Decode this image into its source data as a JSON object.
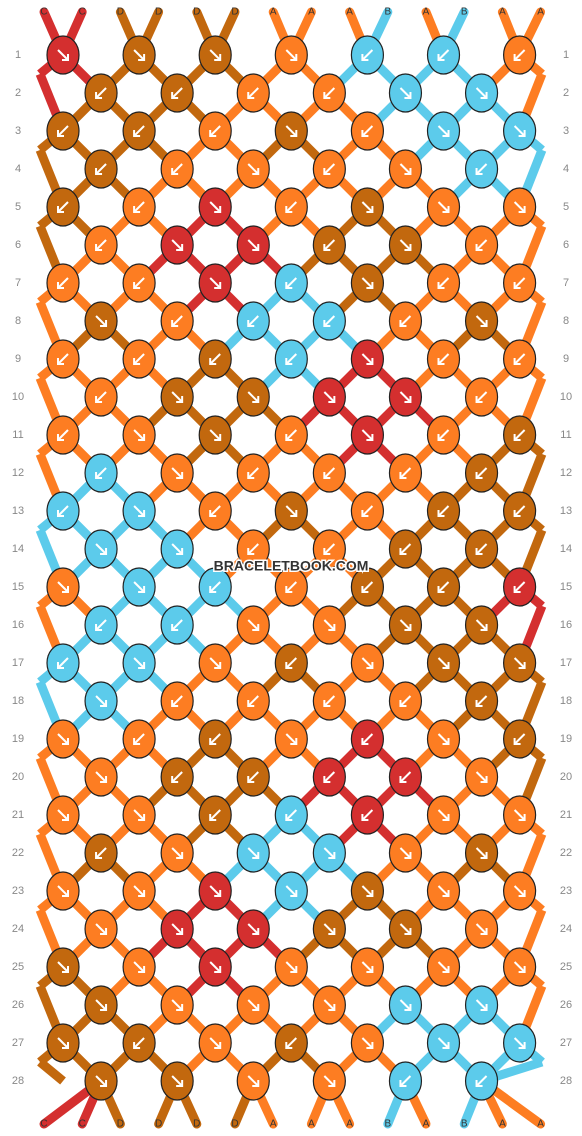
{
  "strands_top": [
    "C",
    "C",
    "D",
    "D",
    "D",
    "D",
    "A",
    "A",
    "A",
    "B",
    "A",
    "B",
    "A",
    "A"
  ],
  "strands_bottom": [
    "C",
    "C",
    "D",
    "D",
    "D",
    "D",
    "A",
    "A",
    "A",
    "B",
    "A",
    "B",
    "A",
    "A"
  ],
  "palette": {
    "A": "#fd7d22",
    "B": "#5ccbeb",
    "C": "#d42f2f",
    "D": "#c2680e"
  },
  "watermark": "BRACELETBOOK.COM",
  "rows": [
    {
      "number": "1",
      "knots": [
        "Cr",
        "Dr",
        "Dr",
        "Ar",
        "Bl",
        "Bl",
        "Al"
      ]
    },
    {
      "number": "2",
      "knots": [
        "Dl",
        "Dl",
        "Al",
        "Al",
        "Br",
        "Br"
      ]
    },
    {
      "number": "3",
      "knots": [
        "Dl",
        "Dl",
        "Al",
        "Dr",
        "Al",
        "Br",
        "Br"
      ]
    },
    {
      "number": "4",
      "knots": [
        "Dl",
        "Al",
        "Ar",
        "Al",
        "Ar",
        "Bl"
      ]
    },
    {
      "number": "5",
      "knots": [
        "Dl",
        "Al",
        "Cr",
        "Al",
        "Dr",
        "Ar",
        "Ar"
      ]
    },
    {
      "number": "6",
      "knots": [
        "Al",
        "Cr",
        "Cr",
        "Dl",
        "Dr",
        "Al"
      ]
    },
    {
      "number": "7",
      "knots": [
        "Al",
        "Al",
        "Cr",
        "Bl",
        "Dr",
        "Al",
        "Al"
      ]
    },
    {
      "number": "8",
      "knots": [
        "Dr",
        "Al",
        "Bl",
        "Bl",
        "Al",
        "Dr"
      ]
    },
    {
      "number": "9",
      "knots": [
        "Al",
        "Al",
        "Dl",
        "Bl",
        "Cr",
        "Al",
        "Al"
      ]
    },
    {
      "number": "10",
      "knots": [
        "Al",
        "Dr",
        "Dr",
        "Cr",
        "Cr",
        "Al"
      ]
    },
    {
      "number": "11",
      "knots": [
        "Al",
        "Ar",
        "Dr",
        "Al",
        "Cr",
        "Al",
        "Dl"
      ]
    },
    {
      "number": "12",
      "knots": [
        "Bl",
        "Ar",
        "Al",
        "Al",
        "Al",
        "Dl"
      ]
    },
    {
      "number": "13",
      "knots": [
        "Bl",
        "Br",
        "Al",
        "Dr",
        "Al",
        "Dl",
        "Dl"
      ]
    },
    {
      "number": "14",
      "knots": [
        "Br",
        "Br",
        "Al",
        "Al",
        "Dl",
        "Dl"
      ]
    },
    {
      "number": "15",
      "knots": [
        "Ar",
        "Br",
        "Bl",
        "Al",
        "Dl",
        "Dl",
        "Cl"
      ]
    },
    {
      "number": "16",
      "knots": [
        "Bl",
        "Bl",
        "Ar",
        "Ar",
        "Dr",
        "Dr"
      ]
    },
    {
      "number": "17",
      "knots": [
        "Bl",
        "Br",
        "Ar",
        "Dl",
        "Ar",
        "Dr",
        "Dr"
      ]
    },
    {
      "number": "18",
      "knots": [
        "Br",
        "Al",
        "Al",
        "Al",
        "Al",
        "Dl"
      ]
    },
    {
      "number": "19",
      "knots": [
        "Ar",
        "Al",
        "Dl",
        "Ar",
        "Cl",
        "Ar",
        "Dl"
      ]
    },
    {
      "number": "20",
      "knots": [
        "Ar",
        "Dl",
        "Dl",
        "Cl",
        "Cl",
        "Ar"
      ]
    },
    {
      "number": "21",
      "knots": [
        "Ar",
        "Ar",
        "Dl",
        "Bl",
        "Cl",
        "Ar",
        "Ar"
      ]
    },
    {
      "number": "22",
      "knots": [
        "Dl",
        "Ar",
        "Br",
        "Br",
        "Ar",
        "Dr"
      ]
    },
    {
      "number": "23",
      "knots": [
        "Ar",
        "Ar",
        "Cr",
        "Br",
        "Dr",
        "Ar",
        "Ar"
      ]
    },
    {
      "number": "24",
      "knots": [
        "Ar",
        "Cr",
        "Cr",
        "Dr",
        "Dr",
        "Ar"
      ]
    },
    {
      "number": "25",
      "knots": [
        "Dr",
        "Ar",
        "Cr",
        "Ar",
        "Ar",
        "Ar",
        "Ar"
      ]
    },
    {
      "number": "26",
      "knots": [
        "Dr",
        "Ar",
        "Ar",
        "Ar",
        "Br",
        "Br"
      ]
    },
    {
      "number": "27",
      "knots": [
        "Dr",
        "Dl",
        "Ar",
        "Dl",
        "Ar",
        "Br",
        "Br"
      ]
    },
    {
      "number": "28",
      "knots": [
        "Dr",
        "Dr",
        "Ar",
        "Ar",
        "Bl",
        "Bl"
      ]
    }
  ]
}
